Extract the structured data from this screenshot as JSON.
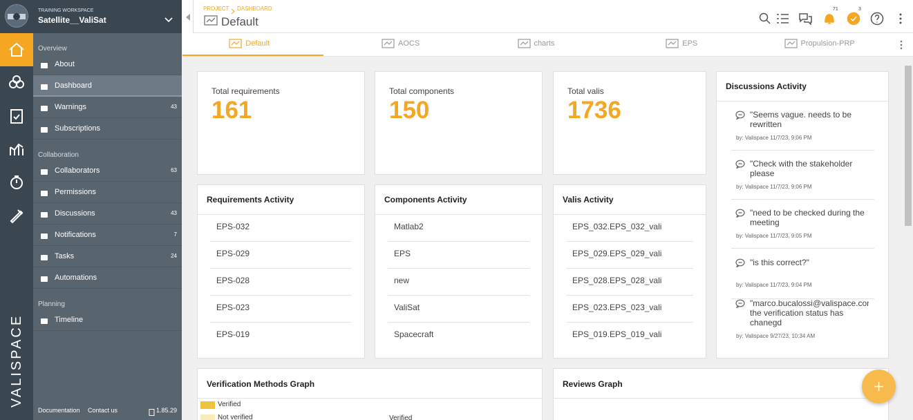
{
  "workspace": {
    "label": "TRAINING WORKSPACE",
    "name": "Satellite__ValiSat"
  },
  "brand": "VALISPACE",
  "sidebar": {
    "sections": [
      {
        "title": "Overview",
        "items": [
          {
            "label": "About"
          },
          {
            "label": "Dashboard"
          },
          {
            "label": "Warnings",
            "count": 43
          },
          {
            "label": "Subscriptions"
          }
        ]
      },
      {
        "title": "Collaboration",
        "items": [
          {
            "label": "Collaborators",
            "count": 63
          },
          {
            "label": "Permissions"
          },
          {
            "label": "Discussions",
            "count": 43
          },
          {
            "label": "Notifications",
            "count": 7
          },
          {
            "label": "Tasks",
            "count": 24
          },
          {
            "label": "Automations"
          }
        ]
      },
      {
        "title": "Planning",
        "items": [
          {
            "label": "Timeline"
          }
        ]
      }
    ],
    "footer": {
      "documentation": "Documentation",
      "contact": "Contact us",
      "version": "1.85.29"
    }
  },
  "breadcrumb": {
    "project": "PROJECT",
    "dashboard": "DASHBOARD"
  },
  "title": "Default",
  "badges": {
    "notifications": 71,
    "tasks": 3
  },
  "tabs": [
    "Default",
    "AOCS",
    "charts",
    "EPS",
    "Propulsion-PRP"
  ],
  "stats": [
    {
      "label": "Total requirements",
      "value": 161
    },
    {
      "label": "Total components",
      "value": 150
    },
    {
      "label": "Total valis",
      "value": 1736
    }
  ],
  "activity": [
    {
      "title": "Requirements Activity",
      "items": [
        "EPS-032",
        "EPS-029",
        "EPS-028",
        "EPS-023",
        "EPS-019"
      ]
    },
    {
      "title": "Components Activity",
      "items": [
        "Matlab2",
        "EPS",
        "new",
        "ValiSat",
        "Spacecraft"
      ]
    },
    {
      "title": "Valis Activity",
      "items": [
        "EPS_032.EPS_032_vali",
        "EPS_029.EPS_029_vali",
        "EPS_028.EPS_028_vali",
        "EPS_023.EPS_023_vali",
        "EPS_019.EPS_019_vali"
      ]
    }
  ],
  "discussions": {
    "title": "Discussions Activity",
    "items": [
      {
        "text": "\"Seems vague. needs to be rewritten",
        "meta": "by: Valispace 11/7/23, 9:06 PM"
      },
      {
        "text": "\"Check with the stakeholder please",
        "meta": "by: Valispace 11/7/23, 9:06 PM"
      },
      {
        "text": "\"need to be checked during the meeting",
        "meta": "by: Valispace 11/7/23, 9:05 PM"
      },
      {
        "text": "\"is this correct?\"",
        "meta": "by: Valispace 11/7/23, 9:04 PM"
      },
      {
        "text": "\"marco.bucalossi@valispace.com the verification status has chanegd",
        "meta": "by: Valispace 9/27/23, 10:34 AM"
      }
    ]
  },
  "graphs": [
    {
      "title": "Verification Methods Graph",
      "legend": [
        "Verified",
        "Not verified"
      ],
      "label": "Verified"
    },
    {
      "title": "Reviews Graph"
    }
  ]
}
